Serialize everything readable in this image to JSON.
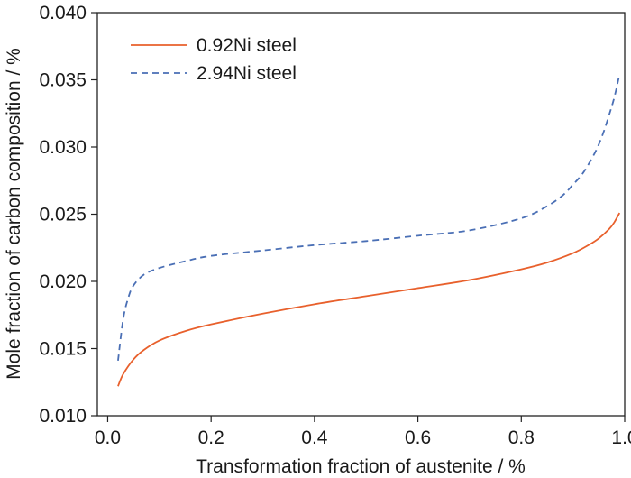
{
  "chart_data": {
    "type": "line",
    "title": "",
    "xlabel": "Transformation fraction of austenite / %",
    "ylabel": "Mole fraction of carbon composition / %",
    "xlim": [
      -0.02,
      1.0
    ],
    "ylim": [
      0.01,
      0.04
    ],
    "x_ticks": [
      0.0,
      0.2,
      0.4,
      0.6,
      0.8,
      1.0
    ],
    "x_tick_labels": [
      "0.0",
      "0.2",
      "0.4",
      "0.6",
      "0.8",
      "1.0"
    ],
    "y_ticks": [
      0.01,
      0.015,
      0.02,
      0.025,
      0.03,
      0.035,
      0.04
    ],
    "y_tick_labels": [
      "0.010",
      "0.015",
      "0.020",
      "0.025",
      "0.030",
      "0.035",
      "0.040"
    ],
    "grid": false,
    "legend_position": "top-left",
    "series": [
      {
        "name": "0.92Ni steel",
        "color": "#E8602C",
        "line_style": "solid",
        "x": [
          0.02,
          0.03,
          0.05,
          0.07,
          0.1,
          0.15,
          0.2,
          0.3,
          0.4,
          0.5,
          0.6,
          0.7,
          0.8,
          0.85,
          0.9,
          0.93,
          0.95,
          0.97,
          0.98,
          0.99
        ],
        "y": [
          0.0122,
          0.0131,
          0.0142,
          0.0149,
          0.0156,
          0.0163,
          0.0168,
          0.0176,
          0.0183,
          0.0189,
          0.0195,
          0.0201,
          0.0209,
          0.0214,
          0.0221,
          0.0227,
          0.0232,
          0.0239,
          0.0244,
          0.0251
        ]
      },
      {
        "name": "2.94Ni steel",
        "color": "#4A6FB5",
        "line_style": "dashed",
        "x": [
          0.02,
          0.03,
          0.04,
          0.05,
          0.07,
          0.1,
          0.15,
          0.2,
          0.3,
          0.4,
          0.5,
          0.6,
          0.7,
          0.8,
          0.85,
          0.88,
          0.9,
          0.92,
          0.94,
          0.95,
          0.96,
          0.97,
          0.98,
          0.99
        ],
        "y": [
          0.0141,
          0.0172,
          0.0188,
          0.0197,
          0.0205,
          0.021,
          0.0215,
          0.0219,
          0.0223,
          0.0227,
          0.023,
          0.0234,
          0.0238,
          0.0247,
          0.0256,
          0.0264,
          0.0272,
          0.0281,
          0.0294,
          0.0302,
          0.0312,
          0.0324,
          0.0337,
          0.0354
        ]
      }
    ]
  }
}
